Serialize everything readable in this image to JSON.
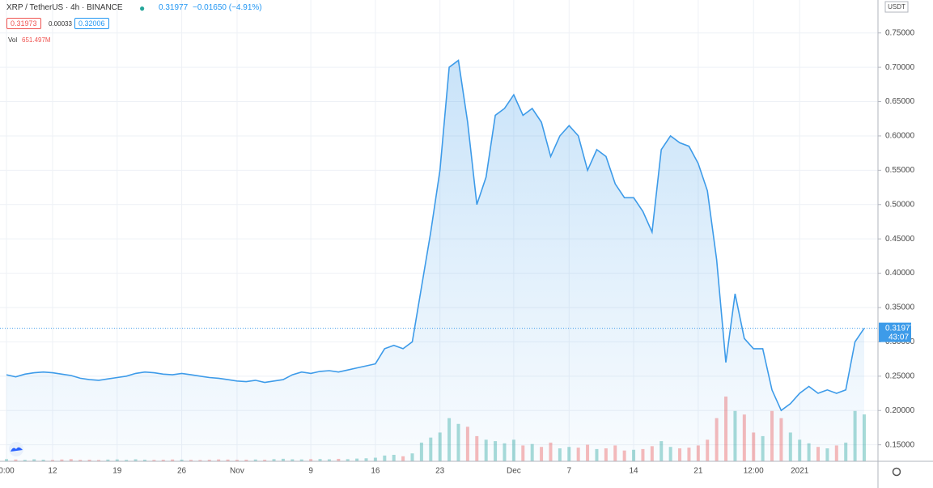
{
  "header": {
    "symbol": "XRP / TetherUS · 4h · BINANCE",
    "price": "0.31977",
    "change": "−0.01650 (−4.91%)",
    "bid": "0.31973",
    "spread": "0.00033",
    "ask": "0.32006",
    "vol_label": "Vol",
    "vol_value": "651.497M",
    "currency": "USDT",
    "countdown": "43:07"
  },
  "chart_data": {
    "type": "line",
    "color": "#3d9be9",
    "up_color": "#26a69a",
    "down_color": "#ef5350",
    "grid": true,
    "categories": [
      "0:00",
      null,
      null,
      null,
      null,
      "12",
      null,
      null,
      null,
      null,
      null,
      null,
      "19",
      null,
      null,
      null,
      null,
      null,
      null,
      "26",
      null,
      null,
      null,
      null,
      null,
      "Nov",
      null,
      null,
      null,
      null,
      null,
      null,
      null,
      "9",
      null,
      null,
      null,
      null,
      null,
      null,
      "16",
      null,
      null,
      null,
      null,
      null,
      null,
      "23",
      null,
      null,
      null,
      null,
      null,
      null,
      null,
      "Dec",
      null,
      null,
      null,
      null,
      null,
      "7",
      null,
      null,
      null,
      null,
      null,
      null,
      "14",
      null,
      null,
      null,
      null,
      null,
      null,
      "21",
      null,
      null,
      null,
      null,
      null,
      "12:00",
      null,
      null,
      null,
      null,
      "2021",
      null,
      null,
      null,
      null,
      null,
      null,
      null
    ],
    "series": [
      {
        "name": "XRP / TetherUS",
        "values": [
          0.252,
          0.249,
          0.253,
          0.255,
          0.256,
          0.255,
          0.253,
          0.251,
          0.247,
          0.245,
          0.244,
          0.246,
          0.248,
          0.25,
          0.254,
          0.256,
          0.255,
          0.253,
          0.252,
          0.254,
          0.252,
          0.25,
          0.248,
          0.247,
          0.245,
          0.243,
          0.242,
          0.244,
          0.241,
          0.243,
          0.245,
          0.252,
          0.256,
          0.254,
          0.257,
          0.258,
          0.256,
          0.259,
          0.262,
          0.265,
          0.268,
          0.29,
          0.295,
          0.29,
          0.3,
          0.38,
          0.46,
          0.55,
          0.7,
          0.71,
          0.62,
          0.5,
          0.54,
          0.63,
          0.64,
          0.66,
          0.63,
          0.64,
          0.62,
          0.57,
          0.6,
          0.615,
          0.6,
          0.55,
          0.58,
          0.57,
          0.53,
          0.51,
          0.51,
          0.49,
          0.46,
          0.58,
          0.6,
          0.59,
          0.585,
          0.56,
          0.52,
          0.42,
          0.27,
          0.37,
          0.305,
          0.29,
          0.29,
          0.23,
          0.2,
          0.21,
          0.225,
          0.235,
          0.225,
          0.23,
          0.225,
          0.23,
          0.3,
          0.31977
        ]
      },
      {
        "name": "Vol",
        "values": [
          30,
          25,
          20,
          28,
          22,
          18,
          25,
          30,
          20,
          22,
          18,
          24,
          26,
          20,
          28,
          22,
          19,
          21,
          25,
          23,
          20,
          18,
          22,
          26,
          24,
          20,
          22,
          25,
          21,
          30,
          35,
          28,
          26,
          30,
          32,
          28,
          34,
          30,
          38,
          42,
          50,
          80,
          90,
          70,
          110,
          260,
          330,
          400,
          600,
          520,
          480,
          350,
          300,
          280,
          250,
          300,
          220,
          240,
          200,
          260,
          180,
          200,
          190,
          230,
          170,
          180,
          220,
          150,
          160,
          170,
          210,
          280,
          200,
          180,
          190,
          220,
          300,
          600,
          900,
          700,
          650,
          400,
          350,
          700,
          600,
          400,
          300,
          250,
          200,
          180,
          220,
          260,
          700,
          651.497
        ]
      }
    ],
    "last_label": "0.31977",
    "ylim": [
      0.126,
      0.798
    ],
    "yticks": [
      {
        "value": 0.15,
        "label": "0.15000"
      },
      {
        "value": 0.2,
        "label": "0.20000"
      },
      {
        "value": 0.25,
        "label": "0.25000"
      },
      {
        "value": 0.3,
        "label": "0.30000"
      },
      {
        "value": 0.35,
        "label": "0.35000"
      },
      {
        "value": 0.4,
        "label": "0.40000"
      },
      {
        "value": 0.45,
        "label": "0.45000"
      },
      {
        "value": 0.5,
        "label": "0.50000"
      },
      {
        "value": 0.55,
        "label": "0.55000"
      },
      {
        "value": 0.6,
        "label": "0.60000"
      },
      {
        "value": 0.65,
        "label": "0.65000"
      },
      {
        "value": 0.7,
        "label": "0.70000"
      },
      {
        "value": 0.75,
        "label": "0.75000"
      }
    ]
  }
}
